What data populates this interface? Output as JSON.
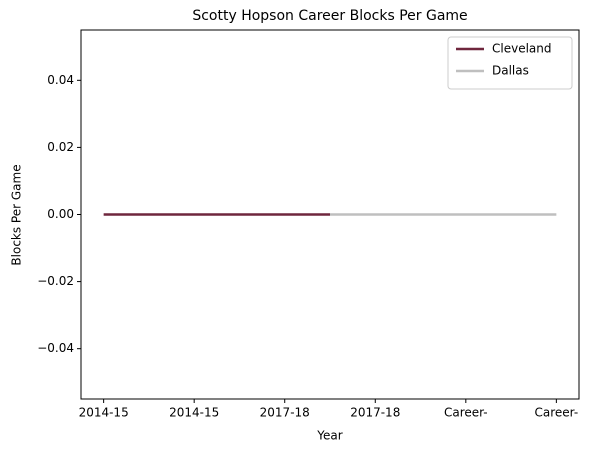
{
  "chart_data": {
    "type": "line",
    "title": "Scotty Hopson Career Blocks Per Game",
    "xlabel": "Year",
    "ylabel": "Blocks Per Game",
    "series": [
      {
        "name": "Cleveland",
        "color": "#6f263d",
        "x": [
          0,
          5
        ],
        "values": [
          0,
          0
        ]
      },
      {
        "name": "Dallas",
        "color": "#bfbfbf",
        "x": [
          5,
          10
        ],
        "values": [
          0,
          0
        ]
      }
    ],
    "xlim": [
      -0.5,
      10.5
    ],
    "xticks": [
      {
        "value": 0,
        "label": "2014-15"
      },
      {
        "value": 2,
        "label": "2014-15"
      },
      {
        "value": 4,
        "label": "2017-18"
      },
      {
        "value": 6,
        "label": "2017-18"
      },
      {
        "value": 8,
        "label": "Career-"
      },
      {
        "value": 10,
        "label": "Career-"
      }
    ],
    "ylim": [
      -0.055,
      0.055
    ],
    "yticks": [
      {
        "value": -0.04,
        "label": "−0.04"
      },
      {
        "value": -0.02,
        "label": "−0.02"
      },
      {
        "value": 0,
        "label": "0.00"
      },
      0.02,
      0.04
    ],
    "legend": "upper right"
  }
}
